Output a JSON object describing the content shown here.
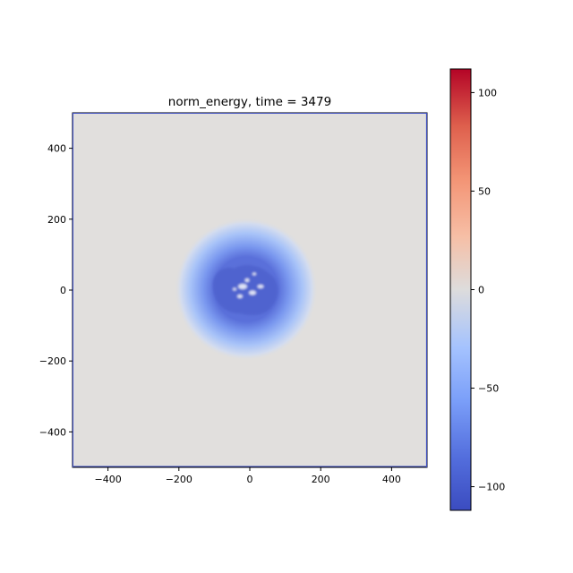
{
  "chart_data": {
    "type": "heatmap",
    "title": "norm_energy, time = 3479",
    "xlabel": "",
    "ylabel": "",
    "xlim": [
      -500,
      500
    ],
    "ylim": [
      -500,
      500
    ],
    "x_ticks": [
      -400,
      -200,
      0,
      200,
      400
    ],
    "y_ticks": [
      -400,
      -200,
      0,
      200,
      400
    ],
    "x_tick_labels": [
      "−400",
      "−200",
      "0",
      "200",
      "400"
    ],
    "y_tick_labels": [
      "−400",
      "−200",
      "0",
      "200",
      "400"
    ],
    "colorbar": {
      "colormap": "coolwarm",
      "vmin": -112,
      "vmax": 112,
      "ticks": [
        -100,
        -50,
        0,
        50,
        100
      ],
      "tick_labels": [
        "−100",
        "−50",
        "0",
        "50",
        "100"
      ],
      "low_color": "#3b4cc0",
      "mid_color": "#dddddd",
      "high_color": "#b40426"
    },
    "field": {
      "background_value": 0,
      "feature": "central low-energy region (blue) centered near (−10, 0) with radius ≈ 150, most negative ≈ −100 within radius ≈ 90, small lighter patches inside",
      "center": [
        -10,
        0
      ],
      "core_value": -100,
      "core_radius": 90,
      "halo_radius": 160
    },
    "grid": false
  }
}
